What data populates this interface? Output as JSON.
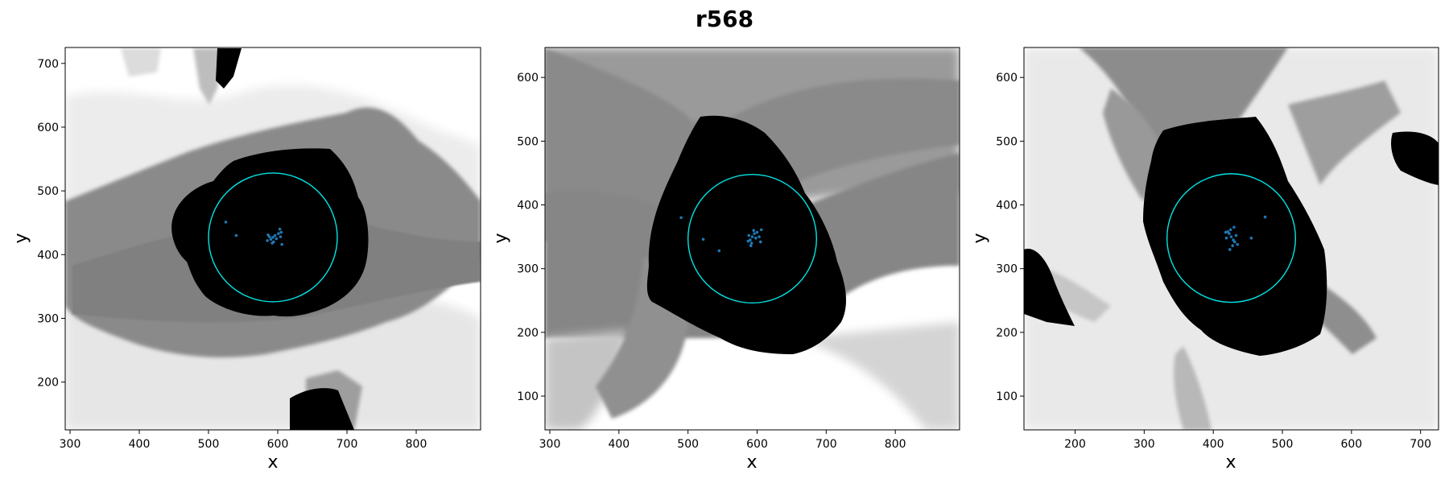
{
  "title": "r568",
  "chart_data": [
    {
      "type": "scatter",
      "xlabel": "x",
      "ylabel": "y",
      "xlim": [
        293,
        893
      ],
      "ylim": [
        125,
        725
      ],
      "xticks": [
        300,
        400,
        500,
        600,
        700,
        800
      ],
      "yticks": [
        200,
        300,
        400,
        500,
        600,
        700
      ],
      "circle": {
        "center": [
          593,
          427
        ],
        "radius": 93,
        "color": "#00e5e5"
      },
      "cluster_center": [
        593,
        427
      ],
      "series": [
        {
          "values_desc": "background trajectory density",
          "color": "#808080"
        },
        {
          "values_desc": "dense point region",
          "color": "#000000"
        },
        {
          "color": "#1f77b4",
          "points": [
            [
              593,
              427
            ],
            [
              590,
              424
            ],
            [
              596,
              430
            ],
            [
              588,
              428
            ],
            [
              598,
              425
            ],
            [
              594,
              420
            ],
            [
              601,
              433
            ],
            [
              586,
              431
            ],
            [
              604,
              428
            ],
            [
              592,
              418
            ],
            [
              606,
              416
            ],
            [
              603,
              440
            ],
            [
              540,
              430
            ],
            [
              525,
              451
            ],
            [
              605,
              435
            ],
            [
              585,
              422
            ]
          ]
        }
      ]
    },
    {
      "type": "scatter",
      "xlabel": "x",
      "ylabel": "y",
      "xlim": [
        293,
        893
      ],
      "ylim": [
        47,
        647
      ],
      "xticks": [
        300,
        400,
        500,
        600,
        700,
        800
      ],
      "yticks": [
        100,
        200,
        300,
        400,
        500,
        600
      ],
      "circle": {
        "center": [
          593,
          347
        ],
        "radius": 93,
        "color": "#00e5e5"
      },
      "cluster_center": [
        593,
        350
      ],
      "series": [
        {
          "values_desc": "background trajectory density",
          "color": "#808080"
        },
        {
          "values_desc": "dense point region",
          "color": "#000000"
        },
        {
          "color": "#1f77b4",
          "points": [
            [
              593,
              350
            ],
            [
              590,
              345
            ],
            [
              596,
              355
            ],
            [
              588,
              352
            ],
            [
              598,
              348
            ],
            [
              592,
              340
            ],
            [
              595,
              360
            ],
            [
              600,
              357
            ],
            [
              587,
              343
            ],
            [
              603,
              350
            ],
            [
              606,
              361
            ],
            [
              522,
              346
            ],
            [
              490,
              380
            ],
            [
              545,
              328
            ],
            [
              605,
              342
            ],
            [
              591,
              336
            ]
          ]
        }
      ]
    },
    {
      "type": "scatter",
      "xlabel": "x",
      "ylabel": "y",
      "xlim": [
        126,
        726
      ],
      "ylim": [
        47,
        647
      ],
      "xticks": [
        200,
        300,
        400,
        500,
        600,
        700
      ],
      "yticks": [
        100,
        200,
        300,
        400,
        500,
        600
      ],
      "circle": {
        "center": [
          426,
          348
        ],
        "radius": 93,
        "color": "#00e5e5"
      },
      "cluster_center": [
        426,
        350
      ],
      "series": [
        {
          "values_desc": "background trajectory density",
          "color": "#808080"
        },
        {
          "values_desc": "dense point region",
          "color": "#000000"
        },
        {
          "color": "#1f77b4",
          "points": [
            [
              426,
              350
            ],
            [
              423,
              355
            ],
            [
              429,
              345
            ],
            [
              421,
              358
            ],
            [
              431,
              342
            ],
            [
              425,
              361
            ],
            [
              428,
              336
            ],
            [
              419,
              348
            ],
            [
              433,
              352
            ],
            [
              424,
              330
            ],
            [
              435,
              338
            ],
            [
              475,
              381
            ],
            [
              455,
              348
            ],
            [
              430,
              365
            ],
            [
              418,
              357
            ]
          ]
        }
      ]
    }
  ]
}
